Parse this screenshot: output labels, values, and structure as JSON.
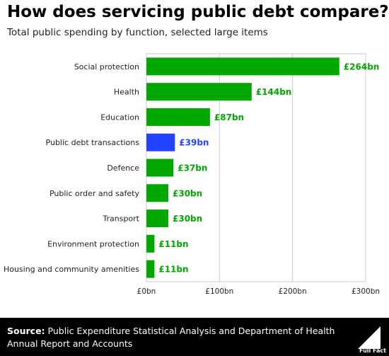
{
  "header": {
    "title": "How does servicing public debt compare?",
    "subtitle": "Total public spending by function, selected large items"
  },
  "footer": {
    "source_label": "Source:",
    "source_text": "Public Expenditure Statistical Analysis and Department of Health Annual Report and Accounts",
    "logo_text": "Full Fact"
  },
  "colors": {
    "default_bar": "#00a800",
    "highlight_bar": "#2244ff",
    "footer_bg": "#000000"
  },
  "chart_data": {
    "type": "bar",
    "orientation": "horizontal",
    "title": "How does servicing public debt compare?",
    "subtitle": "Total public spending by function, selected large items",
    "categories": [
      "Social protection",
      "Health",
      "Education",
      "Public debt transactions",
      "Defence",
      "Public order and safety",
      "Transport",
      "Environment protection",
      "Housing and community amenities"
    ],
    "values": [
      264,
      144,
      87,
      39,
      37,
      30,
      30,
      11,
      11
    ],
    "value_labels": [
      "£264bn",
      "£144bn",
      "£87bn",
      "£39bn",
      "£37bn",
      "£30bn",
      "£30bn",
      "£11bn",
      "£11bn"
    ],
    "highlight_index": 3,
    "xlim": [
      0,
      300
    ],
    "xticks": [
      0,
      100,
      200,
      300
    ],
    "xtick_labels": [
      "£0bn",
      "£100bn",
      "£200bn",
      "£300bn"
    ],
    "grid": true,
    "legend": "none"
  }
}
